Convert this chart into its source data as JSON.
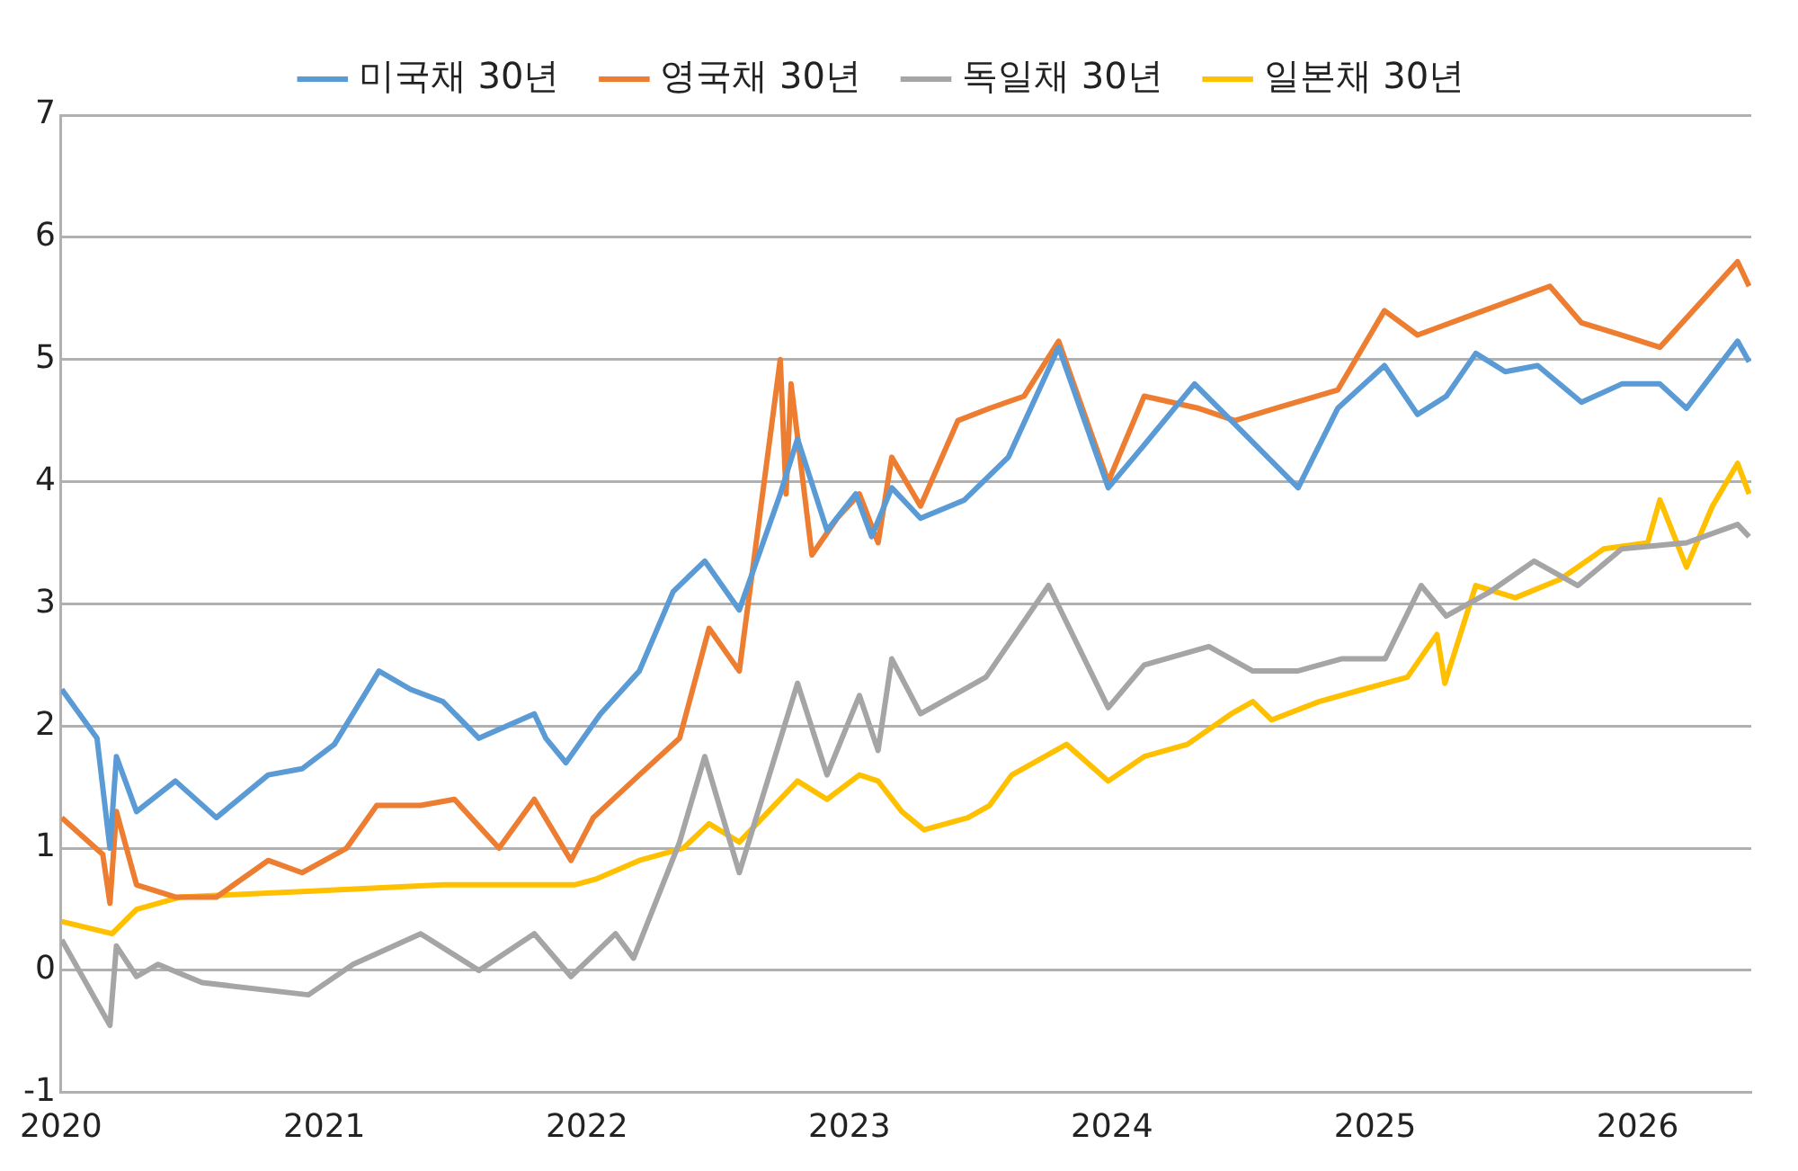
{
  "chart_data": {
    "type": "line",
    "legend": "top",
    "grid": "y",
    "marker": "none",
    "line_style": "solid",
    "xlim": [
      "2020-01-01",
      "2026-06-08"
    ],
    "xticks": [
      "2020",
      "2021",
      "2022",
      "2023",
      "2024",
      "2025",
      "2026"
    ],
    "ylim": [
      -1,
      7
    ],
    "yticks": [
      -1,
      0,
      1,
      2,
      3,
      4,
      5,
      6,
      7
    ],
    "series": [
      {
        "name": "미국채 30년",
        "color": "#5b9bd5",
        "x": [
          "2020-01-02",
          "2020-02-20",
          "2020-03-09",
          "2020-03-18",
          "2020-04-15",
          "2020-06-08",
          "2020-08-04",
          "2020-10-15",
          "2020-12-01",
          "2021-01-15",
          "2021-03-18",
          "2021-05-01",
          "2021-06-15",
          "2021-08-04",
          "2021-10-20",
          "2021-11-05",
          "2021-12-03",
          "2022-01-20",
          "2022-03-15",
          "2022-05-01",
          "2022-06-14",
          "2022-08-01",
          "2022-09-27",
          "2022-10-21",
          "2022-12-01",
          "2023-01-10",
          "2023-02-01",
          "2023-03-01",
          "2023-04-10",
          "2023-06-10",
          "2023-08-10",
          "2023-10-19",
          "2023-12-27",
          "2024-02-15",
          "2024-04-25",
          "2024-06-15",
          "2024-09-16",
          "2024-11-10",
          "2025-01-14",
          "2025-03-01",
          "2025-04-10",
          "2025-05-21",
          "2025-07-01",
          "2025-08-15",
          "2025-10-15",
          "2025-12-10",
          "2026-02-01",
          "2026-03-10",
          "2026-05-20",
          "2026-06-05"
        ],
        "values": [
          2.3,
          1.9,
          1.0,
          1.75,
          1.3,
          1.55,
          1.25,
          1.6,
          1.65,
          1.85,
          2.45,
          2.3,
          2.2,
          1.9,
          2.1,
          1.9,
          1.7,
          2.1,
          2.45,
          3.1,
          3.35,
          2.95,
          3.9,
          4.35,
          3.6,
          3.9,
          3.55,
          3.95,
          3.7,
          3.85,
          4.2,
          5.1,
          3.95,
          4.3,
          4.8,
          4.5,
          3.95,
          4.6,
          4.95,
          4.55,
          4.7,
          5.05,
          4.9,
          4.95,
          4.65,
          4.8,
          4.8,
          4.6,
          5.15,
          4.98
        ]
      },
      {
        "name": "영국채 30년",
        "color": "#ed7d31",
        "x": [
          "2020-01-02",
          "2020-02-28",
          "2020-03-09",
          "2020-03-18",
          "2020-04-15",
          "2020-06-08",
          "2020-08-04",
          "2020-10-15",
          "2020-12-01",
          "2021-02-01",
          "2021-03-15",
          "2021-05-15",
          "2021-07-01",
          "2021-09-01",
          "2021-10-20",
          "2021-12-10",
          "2022-01-10",
          "2022-03-15",
          "2022-05-10",
          "2022-06-20",
          "2022-08-01",
          "2022-09-27",
          "2022-10-05",
          "2022-10-12",
          "2022-11-10",
          "2022-12-15",
          "2023-01-15",
          "2023-02-10",
          "2023-03-01",
          "2023-04-10",
          "2023-06-01",
          "2023-07-15",
          "2023-09-01",
          "2023-10-19",
          "2023-12-27",
          "2024-02-15",
          "2024-05-01",
          "2024-06-20",
          "2024-08-15",
          "2024-11-10",
          "2025-01-14",
          "2025-03-01",
          "2025-06-01",
          "2025-09-01",
          "2025-10-15",
          "2025-12-10",
          "2026-02-01",
          "2026-05-20",
          "2026-06-05"
        ],
        "values": [
          1.25,
          0.95,
          0.55,
          1.3,
          0.7,
          0.6,
          0.6,
          0.9,
          0.8,
          1.0,
          1.35,
          1.35,
          1.4,
          1.0,
          1.4,
          0.9,
          1.25,
          1.6,
          1.9,
          2.8,
          2.45,
          5.0,
          3.9,
          4.8,
          3.4,
          3.7,
          3.9,
          3.5,
          4.2,
          3.8,
          4.5,
          4.6,
          4.7,
          5.15,
          4.0,
          4.7,
          4.6,
          4.5,
          4.6,
          4.75,
          5.4,
          5.2,
          5.4,
          5.6,
          5.3,
          5.2,
          5.1,
          5.8,
          5.6
        ]
      },
      {
        "name": "독일채 30년",
        "color": "#a5a5a5",
        "x": [
          "2020-01-02",
          "2020-03-09",
          "2020-03-18",
          "2020-04-15",
          "2020-05-15",
          "2020-07-15",
          "2020-12-10",
          "2021-02-10",
          "2021-05-15",
          "2021-08-04",
          "2021-10-20",
          "2021-12-10",
          "2022-02-10",
          "2022-03-07",
          "2022-05-10",
          "2022-06-14",
          "2022-08-01",
          "2022-10-21",
          "2022-12-01",
          "2023-01-15",
          "2023-02-10",
          "2023-03-01",
          "2023-04-10",
          "2023-07-10",
          "2023-10-05",
          "2023-12-27",
          "2024-02-15",
          "2024-05-15",
          "2024-07-15",
          "2024-09-15",
          "2024-11-15",
          "2025-01-15",
          "2025-03-06",
          "2025-04-10",
          "2025-06-10",
          "2025-08-10",
          "2025-10-10",
          "2025-12-10",
          "2026-03-10",
          "2026-05-20",
          "2026-06-05"
        ],
        "values": [
          0.25,
          -0.45,
          0.2,
          -0.05,
          0.05,
          -0.1,
          -0.2,
          0.05,
          0.3,
          0.0,
          0.3,
          -0.05,
          0.3,
          0.1,
          1.05,
          1.75,
          0.8,
          2.35,
          1.6,
          2.25,
          1.8,
          2.55,
          2.1,
          2.4,
          3.15,
          2.15,
          2.5,
          2.65,
          2.45,
          2.45,
          2.55,
          2.55,
          3.15,
          2.9,
          3.1,
          3.35,
          3.15,
          3.45,
          3.5,
          3.65,
          3.55
        ]
      },
      {
        "name": "일본채 30년",
        "color": "#ffc000",
        "x": [
          "2020-01-02",
          "2020-03-12",
          "2020-04-15",
          "2020-06-15",
          "2020-12-15",
          "2021-06-15",
          "2021-12-15",
          "2022-01-15",
          "2022-03-15",
          "2022-05-15",
          "2022-06-20",
          "2022-08-01",
          "2022-10-21",
          "2022-12-01",
          "2023-01-15",
          "2023-02-10",
          "2023-03-15",
          "2023-04-15",
          "2023-06-15",
          "2023-07-15",
          "2023-08-15",
          "2023-10-30",
          "2023-12-27",
          "2024-02-15",
          "2024-04-15",
          "2024-06-15",
          "2024-07-15",
          "2024-08-10",
          "2024-10-15",
          "2024-12-15",
          "2025-02-15",
          "2025-03-28",
          "2025-04-08",
          "2025-05-21",
          "2025-07-15",
          "2025-09-15",
          "2025-11-15",
          "2026-01-15",
          "2026-02-01",
          "2026-03-10",
          "2026-04-15",
          "2026-05-20",
          "2026-06-05"
        ],
        "values": [
          0.4,
          0.3,
          0.5,
          0.6,
          0.65,
          0.7,
          0.7,
          0.75,
          0.9,
          1.0,
          1.2,
          1.05,
          1.55,
          1.4,
          1.6,
          1.55,
          1.3,
          1.15,
          1.25,
          1.35,
          1.6,
          1.85,
          1.55,
          1.75,
          1.85,
          2.1,
          2.2,
          2.05,
          2.2,
          2.3,
          2.4,
          2.75,
          2.35,
          3.15,
          3.05,
          3.2,
          3.45,
          3.5,
          3.85,
          3.3,
          3.8,
          4.15,
          3.9
        ]
      }
    ]
  }
}
